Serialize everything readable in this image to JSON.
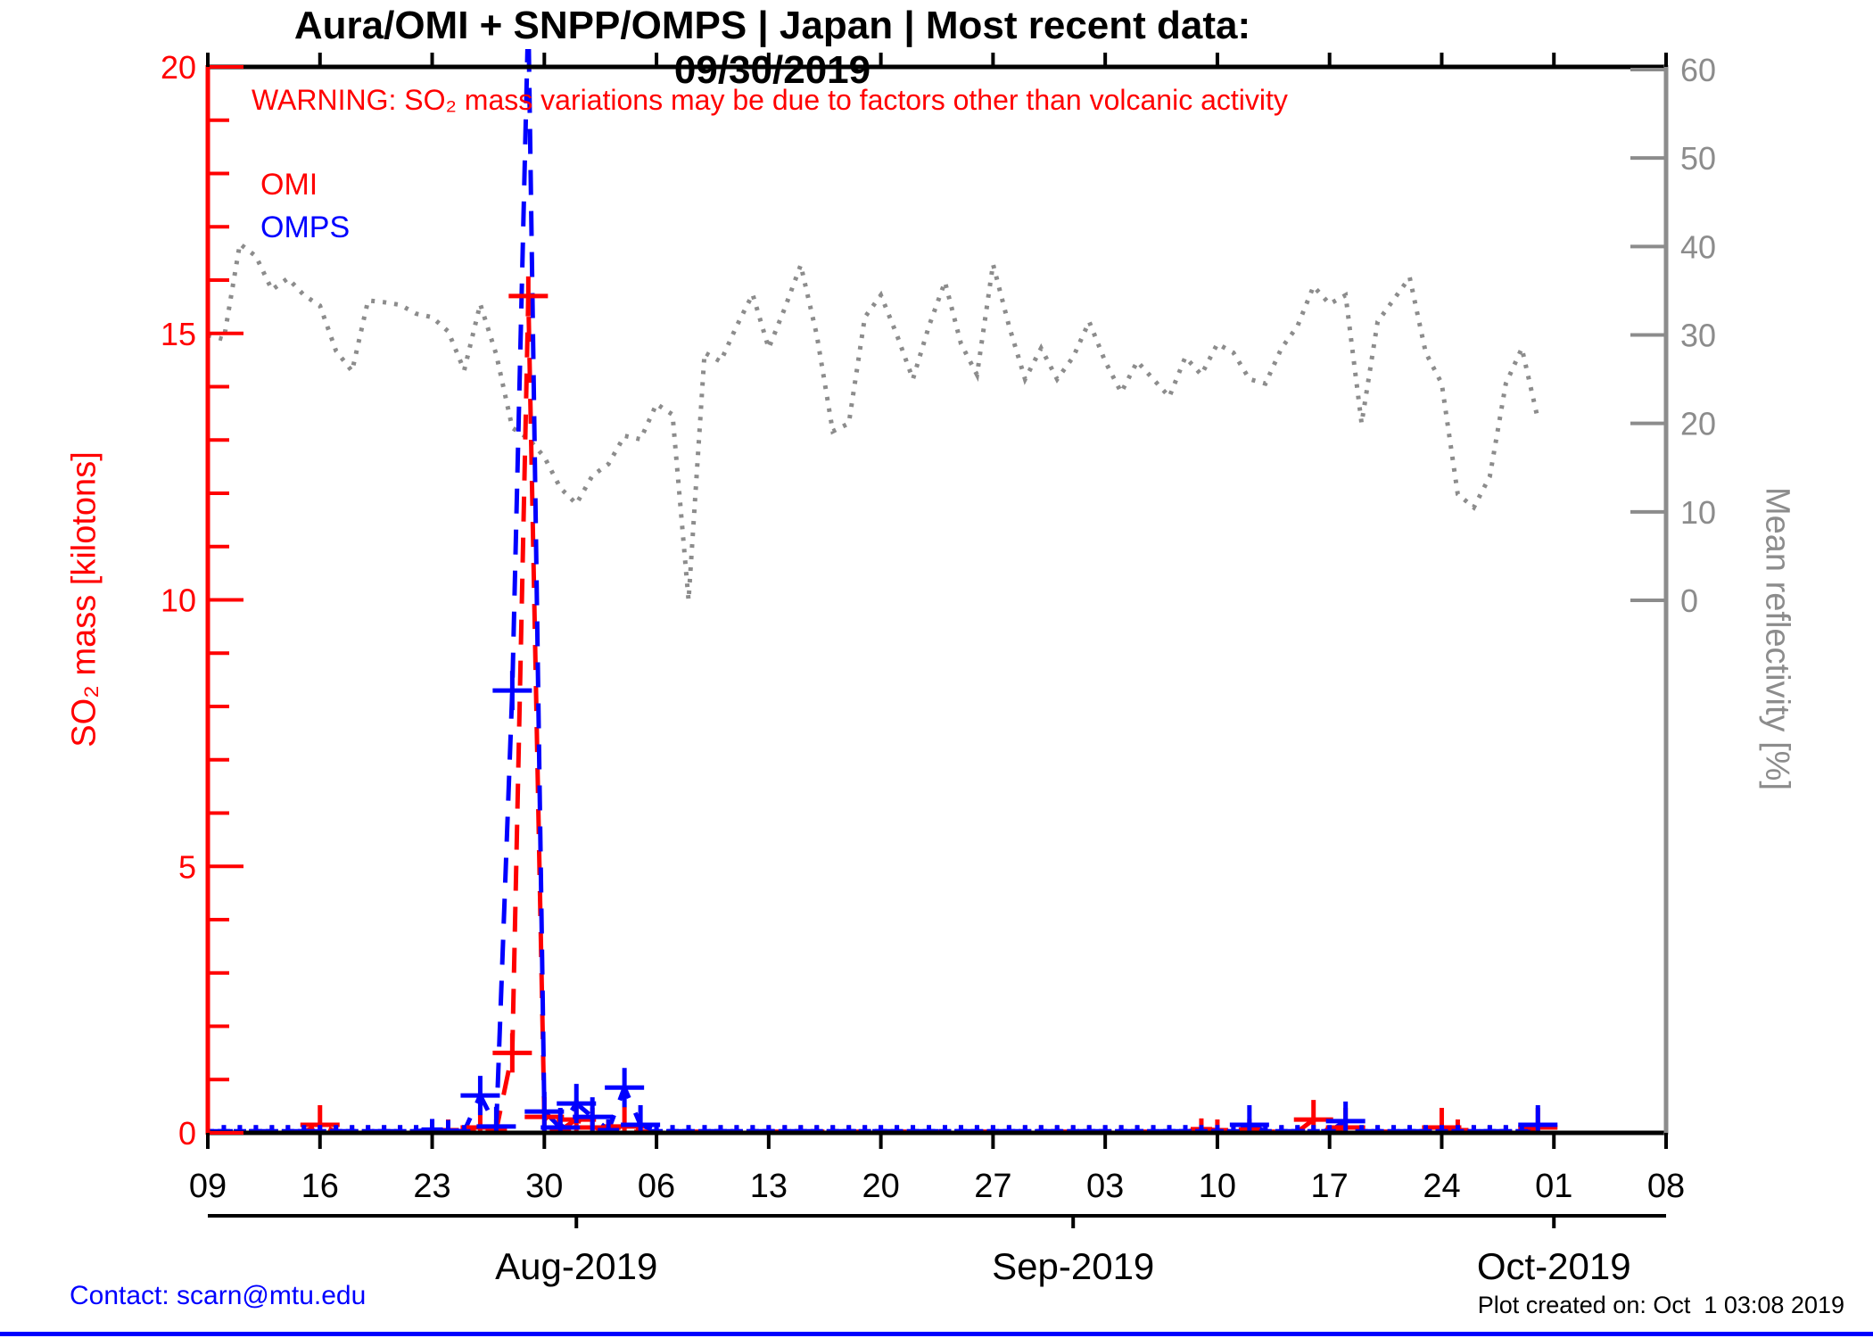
{
  "title": "Aura/OMI + SNPP/OMPS | Japan | Most recent data: 09/30/2019",
  "warning": "WARNING: SO₂ mass variations may be due to factors other than volcanic activity",
  "legend": [
    {
      "label": "OMI",
      "color": "#ff0000"
    },
    {
      "label": "OMPS",
      "color": "#0000ff"
    }
  ],
  "footer": {
    "contact": "Contact: scarn@mtu.edu",
    "created": "Plot created on: Oct  1 03:08 2019"
  },
  "chart_data": {
    "type": "line",
    "title": "Aura/OMI + SNPP/OMPS | Japan | Most recent data: 09/30/2019",
    "x_axis": {
      "start_date": "2019-07-09",
      "end_date": "2019-10-08",
      "week_tick_labels": [
        "09",
        "16",
        "23",
        "30",
        "06",
        "13",
        "20",
        "27",
        "03",
        "10",
        "17",
        "24",
        "01",
        "08"
      ],
      "month_labels": [
        {
          "label": "Aug-2019",
          "day_offset": 23
        },
        {
          "label": "Sep-2019",
          "day_offset": 54
        },
        {
          "label": "Oct-2019",
          "day_offset": 84
        }
      ]
    },
    "y_left": {
      "label": "SO₂ mass [kilotons]",
      "min": 0,
      "max": 20,
      "ticks": [
        0,
        5,
        10,
        15,
        20
      ],
      "color": "#ff0000"
    },
    "y_right": {
      "label": "Mean reflectivity [%]",
      "min": 0,
      "max": 60,
      "ticks": [
        0,
        10,
        20,
        30,
        40,
        50,
        60
      ],
      "color": "#8c8c8c"
    },
    "legend_position": "top-left",
    "grid": false,
    "omps_peak_clipped_above_axis_max": true,
    "series": [
      {
        "name": "OMI",
        "color": "#ff0000",
        "unit": "kilotons",
        "axis": "left",
        "style": "dashed-plus",
        "daily_values": [
          0.02,
          0.02,
          0.02,
          0.02,
          0.02,
          0.02,
          0.02,
          0.15,
          0.02,
          0.02,
          0.02,
          0.02,
          0.02,
          0.02,
          0.05,
          0.05,
          0.02,
          0.1,
          0.05,
          1.5,
          15.7,
          0.3,
          0.05,
          0.25,
          0.1,
          0.05,
          0.12,
          0.02,
          0.02,
          0.02,
          0.02,
          0.02,
          0.02,
          0.02,
          0.02,
          0.02,
          0.02,
          0.02,
          0.02,
          0.02,
          0.02,
          0.02,
          0.02,
          0.02,
          0.02,
          0.02,
          0.02,
          0.02,
          0.02,
          0.02,
          0.02,
          0.02,
          0.02,
          0.02,
          0.02,
          0.02,
          0.02,
          0.02,
          0.02,
          0.02,
          0.02,
          0.02,
          0.07,
          0.05,
          0.02,
          0.06,
          0.02,
          0.02,
          0.02,
          0.25,
          0.02,
          0.1,
          0.02,
          0.02,
          0.02,
          0.02,
          0.02,
          0.1,
          0.05,
          0.02,
          0.02,
          0.02,
          0.02,
          0.1
        ]
      },
      {
        "name": "OMPS",
        "color": "#0000ff",
        "unit": "kilotons",
        "axis": "left",
        "style": "dashed-plus",
        "daily_values": [
          0.03,
          0.03,
          0.03,
          0.03,
          0.03,
          0.03,
          0.03,
          0.03,
          0.03,
          0.03,
          0.03,
          0.03,
          0.03,
          0.03,
          0.06,
          0.04,
          0.03,
          0.7,
          0.12,
          8.3,
          21,
          0.4,
          0.1,
          0.55,
          0.3,
          0.05,
          0.85,
          0.15,
          0.03,
          0.03,
          0.03,
          0.03,
          0.03,
          0.03,
          0.03,
          0.03,
          0.03,
          0.03,
          0.03,
          0.03,
          0.03,
          0.03,
          0.03,
          0.03,
          0.03,
          0.03,
          0.03,
          0.03,
          0.03,
          0.03,
          0.03,
          0.03,
          0.03,
          0.03,
          0.03,
          0.03,
          0.03,
          0.03,
          0.03,
          0.03,
          0.03,
          0.03,
          0.03,
          0.03,
          0.03,
          0.15,
          0.03,
          0.03,
          0.03,
          0.03,
          0.03,
          0.22,
          0.03,
          0.03,
          0.03,
          0.03,
          0.03,
          0.03,
          0.03,
          0.03,
          0.03,
          0.03,
          0.03,
          0.15
        ]
      },
      {
        "name": "Mean reflectivity",
        "color": "#8c8c8c",
        "unit": "%",
        "axis": "right",
        "style": "dotted",
        "daily_values": [
          30,
          29.5,
          40.3,
          38.9,
          35.1,
          36.4,
          34.5,
          33.3,
          28.2,
          25.9,
          33.9,
          33.7,
          33.4,
          32.4,
          32,
          30.4,
          26,
          33.5,
          27.8,
          19.5,
          18.3,
          16.2,
          12.7,
          10.9,
          14.1,
          15.4,
          18.6,
          18.2,
          22.2,
          21,
          0,
          28,
          27,
          31,
          34.6,
          28.5,
          33,
          37.9,
          30,
          19.1,
          20,
          32,
          34.5,
          30,
          25,
          31,
          36,
          29,
          25.5,
          38,
          31,
          25,
          28.5,
          25,
          27.5,
          31.5,
          27,
          23.5,
          27,
          25,
          23,
          27.5,
          25.5,
          29,
          28,
          25,
          24.5,
          28.5,
          31,
          35.5,
          33.5,
          34.5,
          20,
          31.5,
          34,
          36.5,
          28,
          24.5,
          12,
          10.5,
          14,
          24.5,
          28.5,
          20.5
        ]
      }
    ]
  }
}
